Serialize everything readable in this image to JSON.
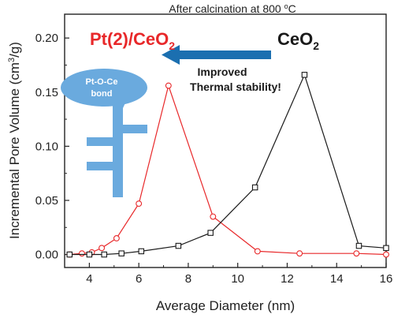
{
  "chart_data": {
    "type": "line",
    "title": "After calcination at 800 ",
    "title_sup": "o",
    "title_unit": "C",
    "xlabel": "Average Diameter (nm)",
    "ylabel_prefix": "Incremental Pore Volume (cm",
    "ylabel_sup": "3",
    "ylabel_suffix": "/g)",
    "xlim": [
      3,
      16
    ],
    "ylim": [
      -0.012,
      0.222
    ],
    "xticks": [
      4,
      6,
      8,
      10,
      12,
      14,
      16
    ],
    "yticks": [
      0.0,
      0.05,
      0.1,
      0.15,
      0.2
    ],
    "grid": false,
    "series": [
      {
        "name": "Pt(2)/CeO2",
        "marker": "circle",
        "color": "#e8282a",
        "x": [
          3.2,
          3.7,
          4.1,
          4.5,
          5.1,
          6.0,
          7.2,
          9.0,
          10.8,
          12.5,
          14.8,
          16.0
        ],
        "y": [
          0.0,
          0.001,
          0.002,
          0.006,
          0.015,
          0.047,
          0.156,
          0.035,
          0.003,
          0.001,
          0.001,
          0.0
        ]
      },
      {
        "name": "CeO2",
        "marker": "square",
        "color": "#1a1a1a",
        "x": [
          3.2,
          4.0,
          4.6,
          5.3,
          6.1,
          7.6,
          8.9,
          10.7,
          12.7,
          14.9,
          16.0
        ],
        "y": [
          0.0,
          0.0,
          0.0,
          0.001,
          0.003,
          0.008,
          0.02,
          0.062,
          0.166,
          0.008,
          0.006
        ]
      }
    ]
  },
  "annotations": {
    "pt_label_main": "Pt(2)/CeO",
    "pt_label_sub": "2",
    "ceo2_label_main": "CeO",
    "ceo2_label_sub": "2",
    "improved_line1": "Improved",
    "improved_line2": "Thermal stability!",
    "bubble_line1": "Pt-O-Ce",
    "bubble_line2": "bond"
  },
  "colors": {
    "red": "#e8282a",
    "black": "#1a1a1a",
    "arrow_blue": "#1b6fb0",
    "key_blue": "#6aaade"
  }
}
